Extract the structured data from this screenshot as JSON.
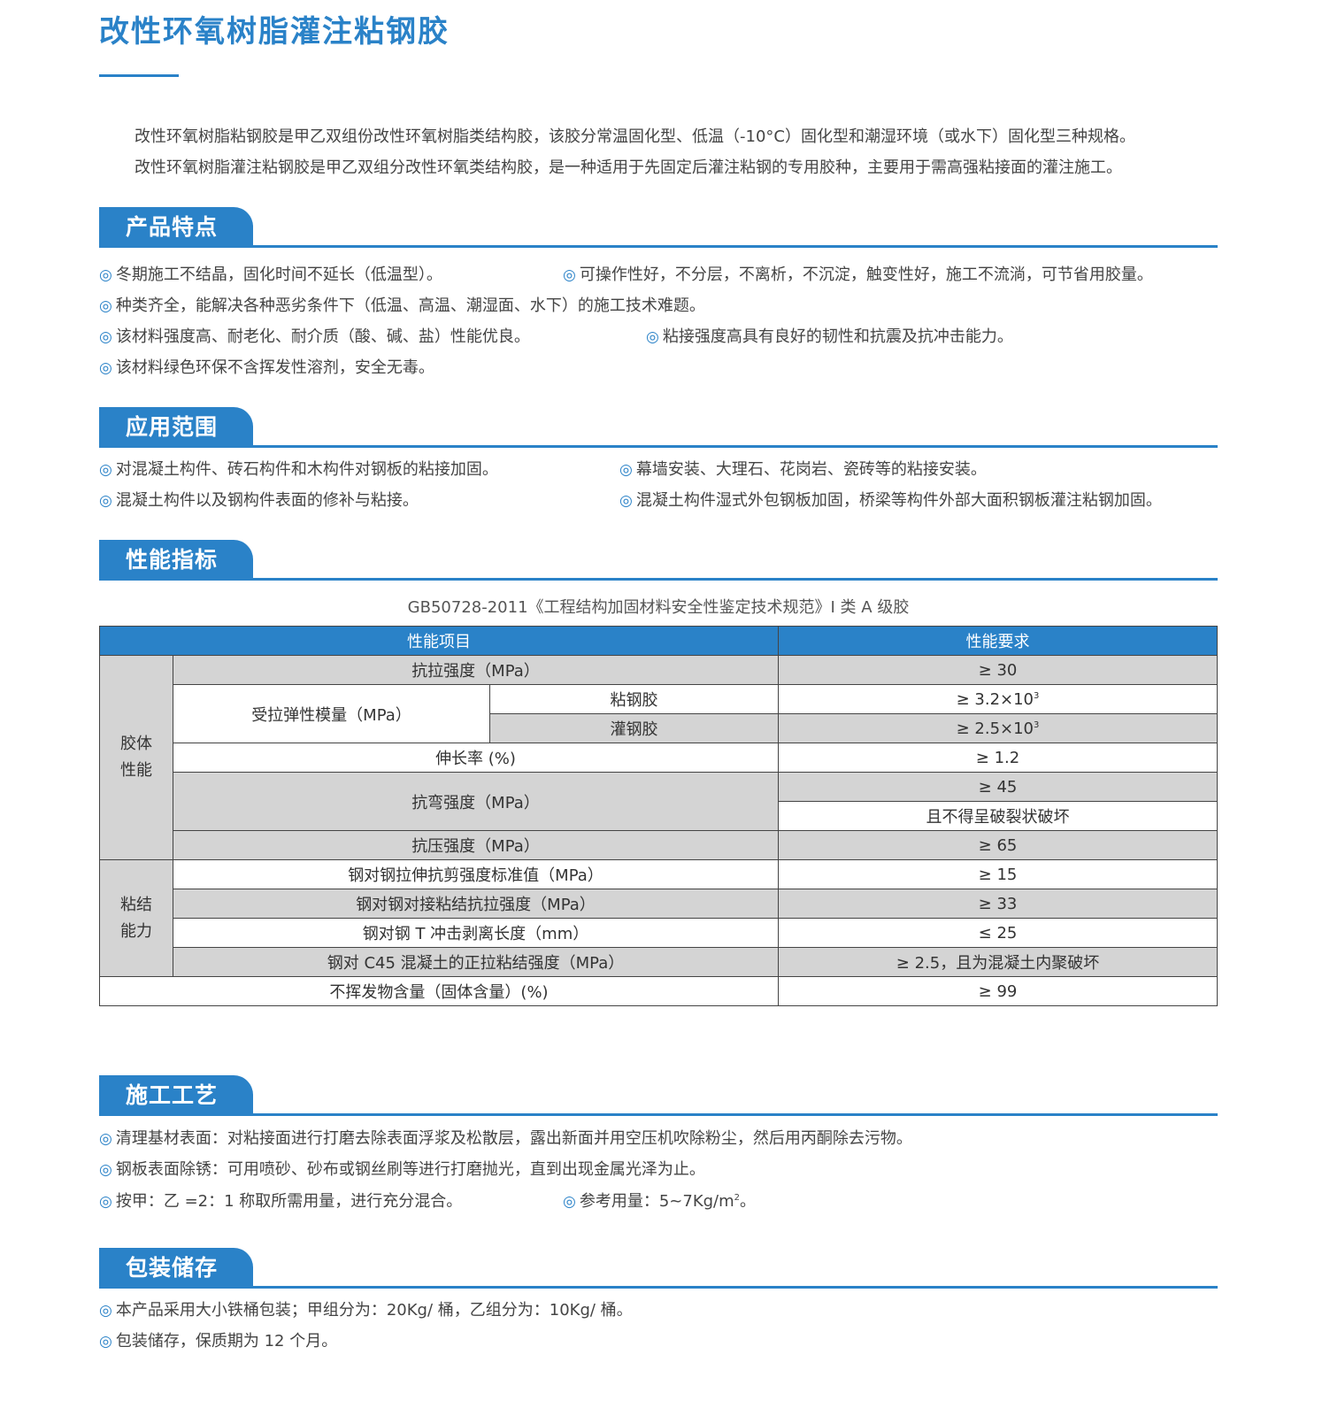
{
  "title": "改性环氧树脂灌注粘钢胶",
  "intro": [
    "改性环氧树脂粘钢胶是甲乙双组份改性环氧树脂类结构胶，该胶分常温固化型、低温（-10°C）固化型和潮湿环境（或水下）固化型三种规格。",
    "改性环氧树脂灌注粘钢胶是甲乙双组分改性环氧类结构胶，是一种适用于先固定后灌注粘钢的专用胶种，主要用于需高强粘接面的灌注施工。"
  ],
  "bullet": "◎",
  "accent": "#2a82c8",
  "sections": {
    "features": {
      "title": "产品特点",
      "items": [
        "冬期施工不结晶，固化时间不延长（低温型）。",
        "可操作性好，不分层，不离析，不沉淀，触变性好，施工不流淌，可节省用胶量。",
        "种类齐全，能解决各种恶劣条件下（低温、高温、潮湿面、水下）的施工技术难题。",
        "该材料强度高、耐老化、耐介质（酸、碱、盐）性能优良。",
        "粘接强度高具有良好的韧性和抗震及抗冲击能力。",
        "该材料绿色环保不含挥发性溶剂，安全无毒。"
      ]
    },
    "applications": {
      "title": "应用范围",
      "items": [
        "对混凝土构件、砖石构件和木构件对钢板的粘接加固。",
        "幕墙安装、大理石、花岗岩、瓷砖等的粘接安装。",
        "混凝土构件以及钢构件表面的修补与粘接。",
        "混凝土构件湿式外包钢板加固，桥梁等构件外部大面积钢板灌注粘钢加固。"
      ]
    },
    "performance": {
      "title": "性能指标",
      "standard": "GB50728-2011《工程结构加固材料安全性鉴定技术规范》I 类 A 级胶",
      "table": {
        "headers": [
          "性能项目",
          "性能要求"
        ],
        "groups": [
          "胶体\n性能",
          "粘结\n能力"
        ],
        "rows": {
          "tensile": [
            "抗拉强度（MPa）",
            "≥ 30"
          ],
          "modulus": "受拉弹性模量（MPa）",
          "modulus_a": [
            "粘钢胶",
            "≥ 3.2×10",
            "3"
          ],
          "modulus_b": [
            "灌钢胶",
            "≥ 2.5×10",
            "3"
          ],
          "elong": [
            "伸长率 (%)",
            "≥ 1.2"
          ],
          "bend": [
            "抗弯强度（MPa）",
            "≥ 45",
            "且不得呈破裂状破坏"
          ],
          "comp": [
            "抗压强度（MPa）",
            "≥ 65"
          ],
          "b1": [
            "钢对钢拉伸抗剪强度标准值（MPa）",
            "≥ 15"
          ],
          "b2": [
            "钢对钢对接粘结抗拉强度（MPa）",
            "≥ 33"
          ],
          "b3": [
            "钢对钢 T 冲击剥离长度（mm）",
            "≤ 25"
          ],
          "b4": [
            "钢对 C45 混凝土的正拉粘结强度（MPa）",
            "≥ 2.5，且为混凝土内聚破坏"
          ],
          "nv": [
            "不挥发物含量（固体含量）(%)",
            "≥ 99"
          ]
        }
      }
    },
    "process": {
      "title": "施工工艺",
      "items": [
        "清理基材表面：对粘接面进行打磨去除表面浮浆及松散层，露出新面并用空压机吹除粉尘，然后用丙酮除去污物。",
        "钢板表面除锈：可用喷砂、砂布或钢丝刷等进行打磨抛光，直到出现金属光泽为止。",
        "按甲：乙 =2：1 称取所需用量，进行充分混合。",
        "参考用量：5~7Kg/m",
        "2",
        "。"
      ]
    },
    "storage": {
      "title": "包装储存",
      "items": [
        "本产品采用大小铁桶包装；甲组分为：20Kg/ 桶，乙组分为：10Kg/ 桶。",
        "包装储存，保质期为 12 个月。"
      ]
    }
  }
}
